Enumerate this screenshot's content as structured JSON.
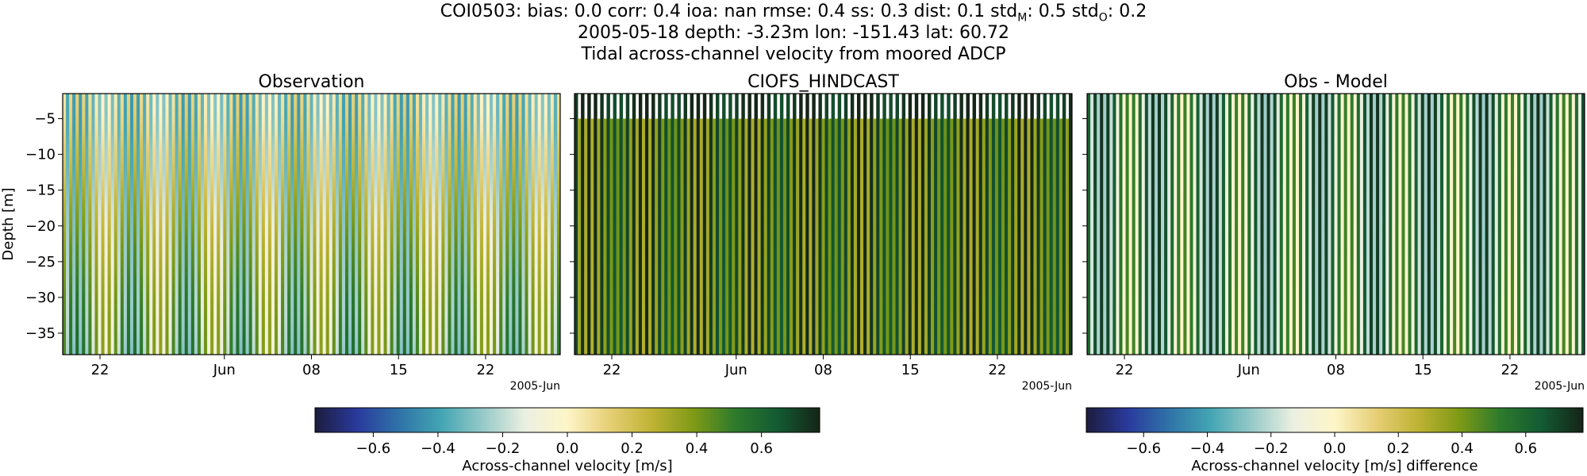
{
  "figure": {
    "stats_line": {
      "prefix": "COI0503: bias: 0.0  corr: 0.4  ioa: nan  rmse: 0.4  ss: 0.3  dist: 0.1  std",
      "sub_m": "M",
      "mid": ": 0.5  std",
      "sub_o": "O",
      "suffix": ": 0.2"
    },
    "info_line": "2005-05-18 depth: -3.23m lon: -151.43 lat: 60.72",
    "description_line": "Tidal across-channel velocity from moored ADCP"
  },
  "colors": {
    "cmap": [
      "#1c1c3d",
      "#2a3a9c",
      "#2f73a8",
      "#43a5b3",
      "#97cac8",
      "#ecf0e2",
      "#fdf5c8",
      "#e6cf76",
      "#bfb334",
      "#7f9a16",
      "#2d7a2c",
      "#135a33",
      "#152417"
    ]
  },
  "chart_data": [
    {
      "type": "heatmap",
      "title": "Observation",
      "ylabel": "Depth [m]",
      "y_ticks": [
        -5,
        -10,
        -15,
        -20,
        -25,
        -30,
        -35
      ],
      "y_tick_labels": [
        "−5",
        "−10",
        "−15",
        "−20",
        "−25",
        "−30",
        "−35"
      ],
      "ylim": [
        -38,
        -1.5
      ],
      "x_ticks": [
        "2005-05-22",
        "2005-06-01",
        "2005-06-08",
        "2005-06-15",
        "2005-06-22"
      ],
      "x_tick_labels": [
        "22",
        "Jun",
        "08",
        "15",
        "22"
      ],
      "x_offset_label": "2005-Jun",
      "xlim": [
        "2005-05-19",
        "2005-06-28"
      ],
      "z_label": "Across-channel velocity [m/s]",
      "z_range": [
        -0.78,
        0.78
      ],
      "depth_levels": [
        -2.5,
        -5,
        -7.5,
        -10,
        -12.5,
        -15,
        -17.5,
        -20,
        -22.5,
        -25,
        -27.5,
        -30,
        -32.5,
        -35,
        -37.5
      ],
      "depth_mean_velocity": [
        -0.15,
        -0.14,
        -0.12,
        -0.08,
        -0.06,
        -0.02,
        0.02,
        0.05,
        0.08,
        0.1,
        0.12,
        0.14,
        0.15,
        0.15,
        0.14
      ],
      "oscillation_amplitude": 0.45,
      "oscillation_period_hours": 12.42
    },
    {
      "type": "heatmap",
      "title": "CIOFS_HINDCAST",
      "y_ticks": [
        -5,
        -10,
        -15,
        -20,
        -25,
        -30,
        -35
      ],
      "ylim": [
        -38,
        -1.5
      ],
      "x_ticks": [
        "2005-05-22",
        "2005-06-01",
        "2005-06-08",
        "2005-06-15",
        "2005-06-22"
      ],
      "x_tick_labels": [
        "22",
        "Jun",
        "08",
        "15",
        "22"
      ],
      "x_offset_label": "2005-Jun",
      "xlim": [
        "2005-05-19",
        "2005-06-28"
      ],
      "z_range": [
        -0.78,
        0.78
      ],
      "model_top_depth": -5,
      "depth_mean_velocity": 0.55,
      "oscillation_amplitude": 0.25,
      "oscillation_period_hours": 12.42
    },
    {
      "type": "heatmap",
      "title": "Obs - Model",
      "y_ticks": [
        -5,
        -10,
        -15,
        -20,
        -25,
        -30,
        -35
      ],
      "ylim": [
        -38,
        -1.5
      ],
      "x_ticks": [
        "2005-05-22",
        "2005-06-01",
        "2005-06-08",
        "2005-06-15",
        "2005-06-22"
      ],
      "x_tick_labels": [
        "22",
        "Jun",
        "08",
        "15",
        "22"
      ],
      "x_offset_label": "2005-Jun",
      "xlim": [
        "2005-05-19",
        "2005-06-28"
      ],
      "z_label": "Across-channel velocity [m/s] difference",
      "z_range": [
        -0.78,
        0.78
      ],
      "depth_mean_velocity": 0.25,
      "oscillation_amplitude": 0.5,
      "oscillation_period_hours": 12.42
    }
  ],
  "colorbars": [
    {
      "label": "Across-channel velocity [m/s]",
      "range": [
        -0.78,
        0.78
      ],
      "ticks": [
        -0.6,
        -0.4,
        -0.2,
        0.0,
        0.2,
        0.4,
        0.6
      ],
      "tick_labels": [
        "−0.6",
        "−0.4",
        "−0.2",
        "0.0",
        "0.2",
        "0.4",
        "0.6"
      ]
    },
    {
      "label": "Across-channel velocity [m/s] difference",
      "range": [
        -0.78,
        0.78
      ],
      "ticks": [
        -0.6,
        -0.4,
        -0.2,
        0.0,
        0.2,
        0.4,
        0.6
      ],
      "tick_labels": [
        "−0.6",
        "−0.4",
        "−0.2",
        "0.0",
        "0.2",
        "0.4",
        "0.6"
      ]
    }
  ]
}
